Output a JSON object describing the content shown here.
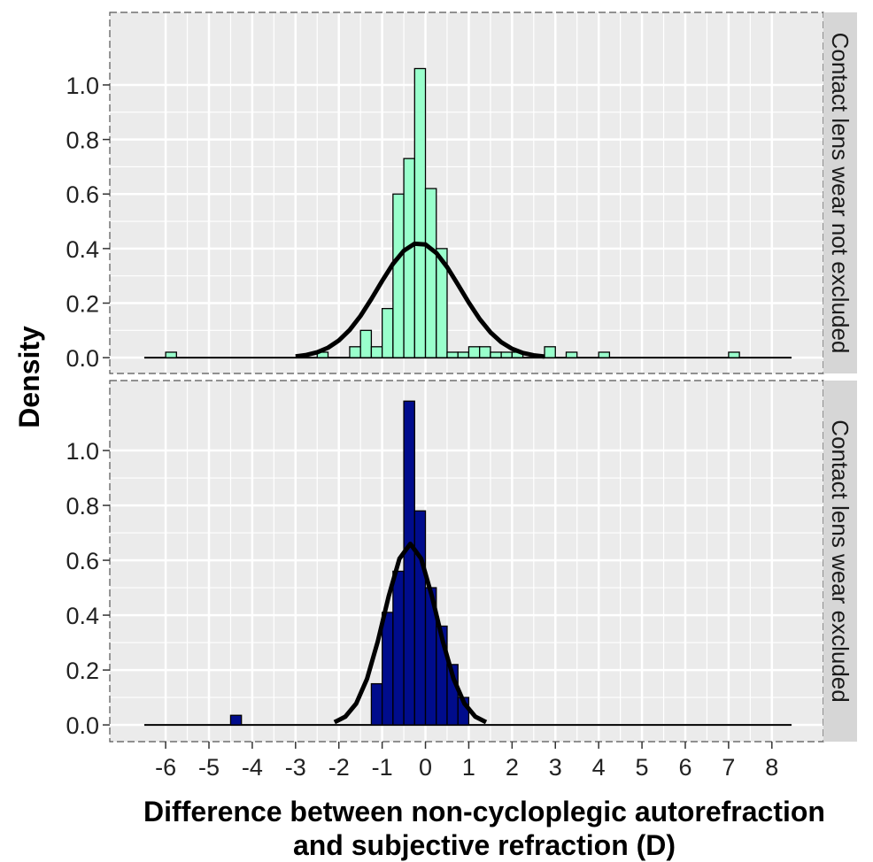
{
  "chart_data": [
    {
      "type": "histogram",
      "strip_label": "Contact lens wear not excluded",
      "y_label": "Density",
      "color": "#99ffcc",
      "bins": [
        -6,
        -5.75,
        -5.5,
        -5.25,
        -5,
        -4.75,
        -4.5,
        -4.25,
        -4,
        -3.75,
        -3.5,
        -3.25,
        -3,
        -2.75,
        -2.5,
        -2.25,
        -2,
        -1.75,
        -1.5,
        -1.25,
        -1,
        -0.75,
        -0.5,
        -0.25,
        0,
        0.25,
        0.5,
        0.75,
        1,
        1.25,
        1.5,
        1.75,
        2,
        2.25,
        2.5,
        2.75,
        3,
        3.25,
        3.5,
        3.75,
        4,
        4.25,
        4.5,
        4.75,
        5,
        5.25,
        5.5,
        5.75,
        6,
        6.25,
        6.5,
        6.75,
        7,
        7.25
      ],
      "values": [
        0.02,
        0,
        0,
        0,
        0,
        0,
        0,
        0,
        0,
        0,
        0,
        0,
        0,
        0,
        0.02,
        0,
        0,
        0.04,
        0.1,
        0.04,
        0.18,
        0.6,
        0.73,
        1.06,
        0.62,
        0.4,
        0.02,
        0.02,
        0.04,
        0.04,
        0.02,
        0.02,
        0.02,
        0,
        0,
        0.04,
        0,
        0.02,
        0,
        0,
        0.02,
        0,
        0,
        0,
        0,
        0,
        0,
        0,
        0,
        0,
        0,
        0,
        0.02
      ],
      "curve_x": [
        -3,
        -2.75,
        -2.5,
        -2.25,
        -2,
        -1.75,
        -1.5,
        -1.25,
        -1,
        -0.75,
        -0.5,
        -0.25,
        0,
        0.25,
        0.5,
        0.75,
        1,
        1.25,
        1.5,
        1.75,
        2,
        2.25,
        2.5,
        2.75
      ],
      "curve_y": [
        0.0047,
        0.0099,
        0.0197,
        0.0365,
        0.063,
        0.1017,
        0.153,
        0.215,
        0.2814,
        0.344,
        0.392,
        0.418,
        0.415,
        0.384,
        0.332,
        0.268,
        0.202,
        0.142,
        0.093,
        0.0568,
        0.0324,
        0.0173,
        0.0086,
        0.004
      ],
      "xlim": [
        -7.29,
        9.19
      ],
      "xticks": [
        -6,
        -5,
        -4,
        -3,
        -2,
        -1,
        0,
        1,
        2,
        3,
        4,
        5,
        6,
        7,
        8
      ],
      "ylim": [
        -0.058,
        1.266
      ],
      "yticks": [
        {
          "value": 0,
          "label": "0.0"
        },
        0.2,
        0.4,
        0.6,
        0.8,
        {
          "value": 1,
          "label": "1.0"
        }
      ],
      "grid": true
    },
    {
      "type": "histogram",
      "strip_label": "Contact lens wear excluded",
      "x_label": [
        "Difference between non-cycloplegic autorefraction",
        "and subjective refraction (D)"
      ],
      "color": "#000c8c",
      "bins": [
        -4.5,
        -4.25,
        -4,
        -3.75,
        -3.5,
        -3.25,
        -3,
        -2.75,
        -2.5,
        -2.25,
        -2,
        -1.75,
        -1.5,
        -1.25,
        -1,
        -0.75,
        -0.5,
        -0.25,
        0,
        0.25,
        0.5,
        0.75,
        1
      ],
      "values": [
        0.035,
        0,
        0,
        0,
        0,
        0,
        0,
        0,
        0,
        0,
        0,
        0,
        0,
        0.15,
        0.41,
        0.56,
        1.18,
        0.78,
        0.5,
        0.36,
        0.22,
        0.1
      ],
      "curve_x": [
        -2.1,
        -1.85,
        -1.6,
        -1.35,
        -1.1,
        -0.85,
        -0.6,
        -0.35,
        -0.1,
        0.15,
        0.4,
        0.65,
        0.9,
        1.15,
        1.4
      ],
      "curve_y": [
        0.0099,
        0.0302,
        0.0776,
        0.1676,
        0.305,
        0.4685,
        0.606,
        0.66,
        0.606,
        0.4685,
        0.305,
        0.1676,
        0.0776,
        0.0302,
        0.0099
      ],
      "xlim": [
        -7.29,
        9.19
      ],
      "xticks": [
        -6,
        -5,
        -4,
        -3,
        -2,
        -1,
        0,
        1,
        2,
        3,
        4,
        5,
        6,
        7,
        8
      ],
      "ylim": [
        -0.061,
        1.255
      ],
      "yticks": [
        {
          "value": 0,
          "label": "0.0"
        },
        0.2,
        0.4,
        0.6,
        0.8,
        {
          "value": 1,
          "label": "1.0"
        }
      ],
      "grid": true
    }
  ]
}
